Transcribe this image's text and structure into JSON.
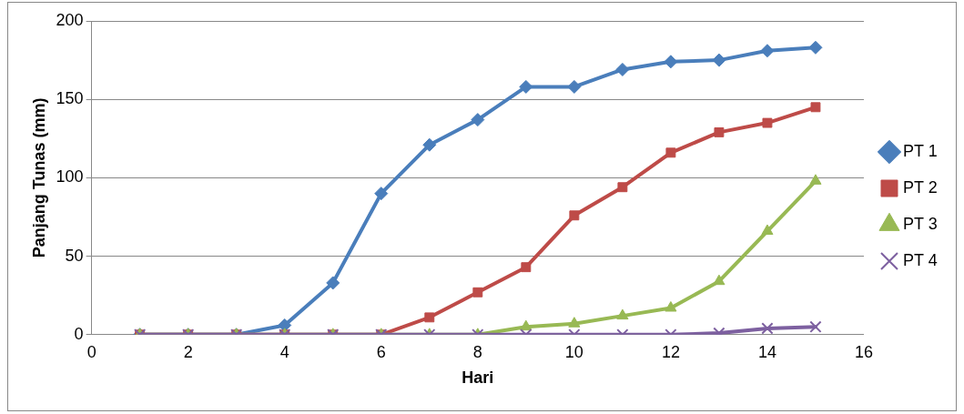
{
  "chart_data": {
    "type": "line",
    "xlabel": "Hari",
    "ylabel": "Panjang Tunas (mm)",
    "x": [
      1,
      2,
      3,
      4,
      5,
      6,
      7,
      8,
      9,
      10,
      11,
      12,
      13,
      14,
      15
    ],
    "xlim": [
      0,
      16
    ],
    "xticks": [
      0,
      2,
      4,
      6,
      8,
      10,
      12,
      14,
      16
    ],
    "ylim": [
      0,
      200
    ],
    "yticks": [
      0,
      50,
      100,
      150,
      200
    ],
    "grid": "y",
    "legend": "right",
    "series": [
      {
        "name": "PT 1",
        "color": "#4a7ebb",
        "marker": "diamond",
        "values": [
          0,
          0,
          0,
          6,
          33,
          90,
          121,
          137,
          158,
          158,
          169,
          174,
          175,
          181,
          183
        ]
      },
      {
        "name": "PT 2",
        "color": "#be4b48",
        "marker": "square",
        "values": [
          0,
          0,
          0,
          0,
          0,
          0,
          11,
          27,
          43,
          76,
          94,
          116,
          129,
          135,
          145
        ]
      },
      {
        "name": "PT 3",
        "color": "#98b954",
        "marker": "triangle",
        "values": [
          0,
          0,
          0,
          0,
          0,
          0,
          0,
          0,
          5,
          7,
          12,
          17,
          34,
          66,
          98
        ]
      },
      {
        "name": "PT 4",
        "color": "#7d60a0",
        "marker": "cross",
        "values": [
          0,
          0,
          0,
          0,
          0,
          0,
          0,
          0,
          0,
          0,
          0,
          0,
          1,
          4,
          5
        ]
      }
    ]
  }
}
